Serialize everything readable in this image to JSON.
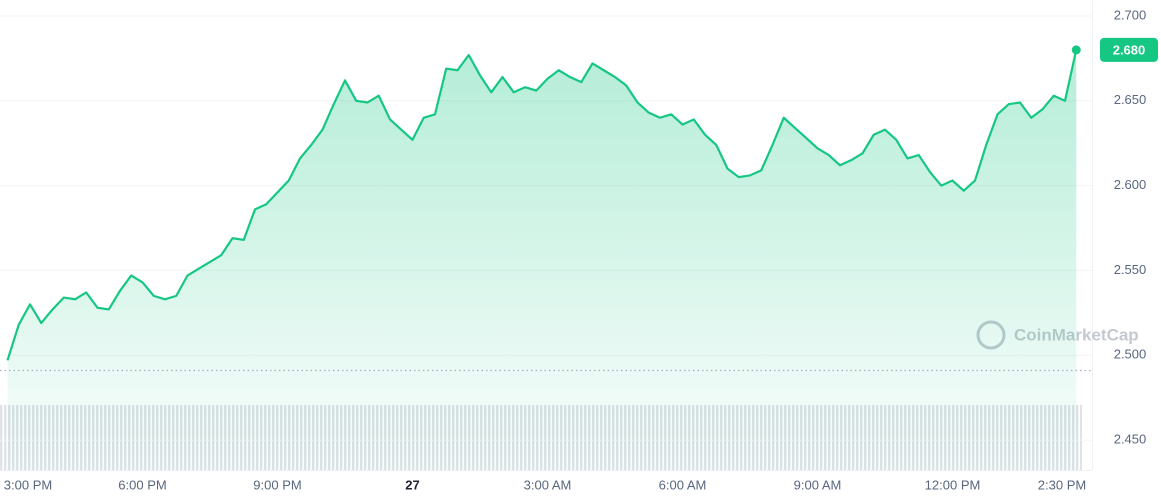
{
  "chart_data": {
    "type": "area",
    "watermark": "CoinMarketCap",
    "categories": [
      "3:00 PM",
      null,
      null,
      null,
      null,
      null,
      null,
      null,
      null,
      null,
      null,
      null,
      "6:00 PM",
      null,
      null,
      null,
      null,
      null,
      null,
      null,
      null,
      null,
      null,
      null,
      "9:00 PM",
      null,
      null,
      null,
      null,
      null,
      null,
      null,
      null,
      null,
      null,
      null,
      "27",
      null,
      null,
      null,
      null,
      null,
      null,
      null,
      null,
      null,
      null,
      null,
      "3:00 AM",
      null,
      null,
      null,
      null,
      null,
      null,
      null,
      null,
      null,
      null,
      null,
      "6:00 AM",
      null,
      null,
      null,
      null,
      null,
      null,
      null,
      null,
      null,
      null,
      null,
      "9:00 AM",
      null,
      null,
      null,
      null,
      null,
      null,
      null,
      null,
      null,
      null,
      null,
      "12:00 PM",
      null,
      null,
      null,
      null,
      null,
      null,
      null,
      null,
      null,
      "2:30 PM",
      null
    ],
    "values": [
      2.497,
      2.518,
      2.53,
      2.519,
      2.527,
      2.534,
      2.533,
      2.537,
      2.528,
      2.527,
      2.538,
      2.547,
      2.543,
      2.535,
      2.533,
      2.535,
      2.547,
      2.551,
      2.555,
      2.559,
      2.569,
      2.568,
      2.586,
      2.589,
      2.596,
      2.603,
      2.616,
      2.624,
      2.633,
      2.648,
      2.662,
      2.65,
      2.649,
      2.653,
      2.639,
      2.633,
      2.627,
      2.64,
      2.642,
      2.669,
      2.668,
      2.677,
      2.665,
      2.655,
      2.664,
      2.655,
      2.658,
      2.656,
      2.663,
      2.668,
      2.664,
      2.661,
      2.672,
      2.668,
      2.664,
      2.659,
      2.649,
      2.643,
      2.64,
      2.642,
      2.636,
      2.639,
      2.63,
      2.624,
      2.61,
      2.605,
      2.606,
      2.609,
      2.624,
      2.64,
      2.634,
      2.628,
      2.622,
      2.618,
      2.612,
      2.615,
      2.619,
      2.63,
      2.633,
      2.627,
      2.616,
      2.618,
      2.608,
      2.6,
      2.603,
      2.597,
      2.603,
      2.624,
      2.642,
      2.648,
      2.649,
      2.64,
      2.645,
      2.653,
      2.65,
      2.68
    ],
    "value_labels": [
      null,
      null,
      null,
      null,
      null,
      null,
      null,
      null,
      null,
      null,
      null,
      null,
      null,
      null,
      null,
      null,
      null,
      null,
      null,
      null,
      null,
      null,
      null,
      null,
      null,
      null,
      null,
      null,
      null,
      null,
      null,
      null,
      null,
      null,
      null,
      null,
      null,
      null,
      null,
      null,
      null,
      null,
      null,
      null,
      null,
      null,
      null,
      null,
      null,
      null,
      null,
      null,
      null,
      null,
      null,
      null,
      null,
      null,
      null,
      null,
      null,
      null,
      null,
      null,
      null,
      null,
      null,
      null,
      null,
      null,
      null,
      null,
      null,
      null,
      null,
      null,
      null,
      null,
      null,
      null,
      null,
      null,
      null,
      null,
      null,
      null,
      null,
      null,
      null,
      null,
      null,
      null,
      null,
      null,
      null,
      "2.680"
    ],
    "color": "#16c784",
    "reference_line": 2.491,
    "ylim": [
      2.43,
      2.71
    ],
    "yticks": [
      {
        "value": 2.45,
        "label": "2.450"
      },
      {
        "value": 2.5,
        "label": "2.500"
      },
      {
        "value": 2.55,
        "label": "2.550"
      },
      {
        "value": 2.6,
        "label": "2.600"
      },
      {
        "value": 2.65,
        "label": "2.650"
      },
      {
        "value": 2.7,
        "label": "2.700"
      }
    ],
    "grid": true
  }
}
